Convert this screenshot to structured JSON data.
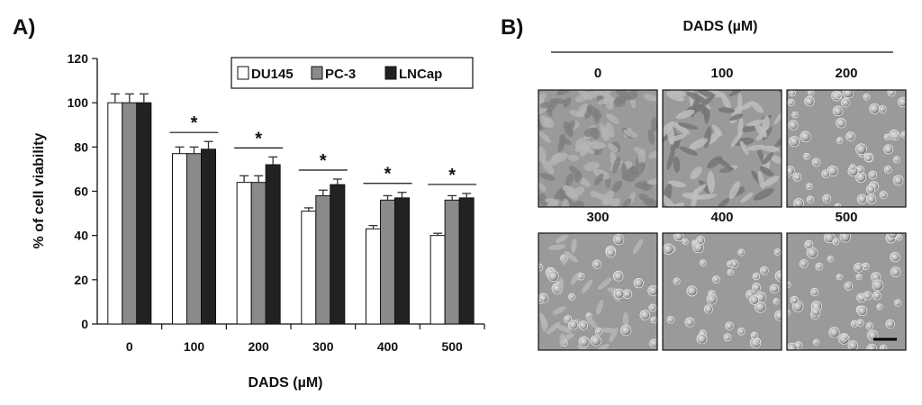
{
  "panel_a": {
    "label": "A)",
    "chart_data": {
      "type": "bar",
      "title": "",
      "xlabel": "DADS (µM)",
      "ylabel": "% of cell viability",
      "ylim": [
        0,
        120
      ],
      "yticks": [
        "0",
        "20",
        "40",
        "60",
        "80",
        "100",
        "120"
      ],
      "categories": [
        "0",
        "100",
        "200",
        "300",
        "400",
        "500"
      ],
      "series": [
        {
          "name": "DU145",
          "color": "#ffffff",
          "values": [
            100,
            77,
            64,
            51,
            43,
            40
          ],
          "errors": [
            4,
            3,
            3,
            1.5,
            1.5,
            1
          ]
        },
        {
          "name": "PC-3",
          "color": "#8a8a8a",
          "values": [
            100,
            77,
            64,
            58,
            56,
            56
          ],
          "errors": [
            4,
            3,
            3,
            2.5,
            2,
            2
          ]
        },
        {
          "name": "LNCap",
          "color": "#222222",
          "values": [
            100,
            79,
            72,
            63,
            57,
            57
          ],
          "errors": [
            4,
            3.5,
            3.5,
            2.5,
            2.5,
            2
          ]
        }
      ],
      "significance_marker": "*",
      "significant_categories": [
        "100",
        "200",
        "300",
        "400",
        "500"
      ],
      "legend_position": "top-right",
      "grid": false
    }
  },
  "panel_b": {
    "label": "B)",
    "title": "DADS (µM)",
    "images": [
      {
        "label": "0",
        "kind": "confluent"
      },
      {
        "label": "100",
        "kind": "elongated"
      },
      {
        "label": "200",
        "kind": "rounded"
      },
      {
        "label": "300",
        "kind": "mixed"
      },
      {
        "label": "400",
        "kind": "sparse"
      },
      {
        "label": "500",
        "kind": "sparse-dense"
      }
    ],
    "scale_bar": true
  }
}
